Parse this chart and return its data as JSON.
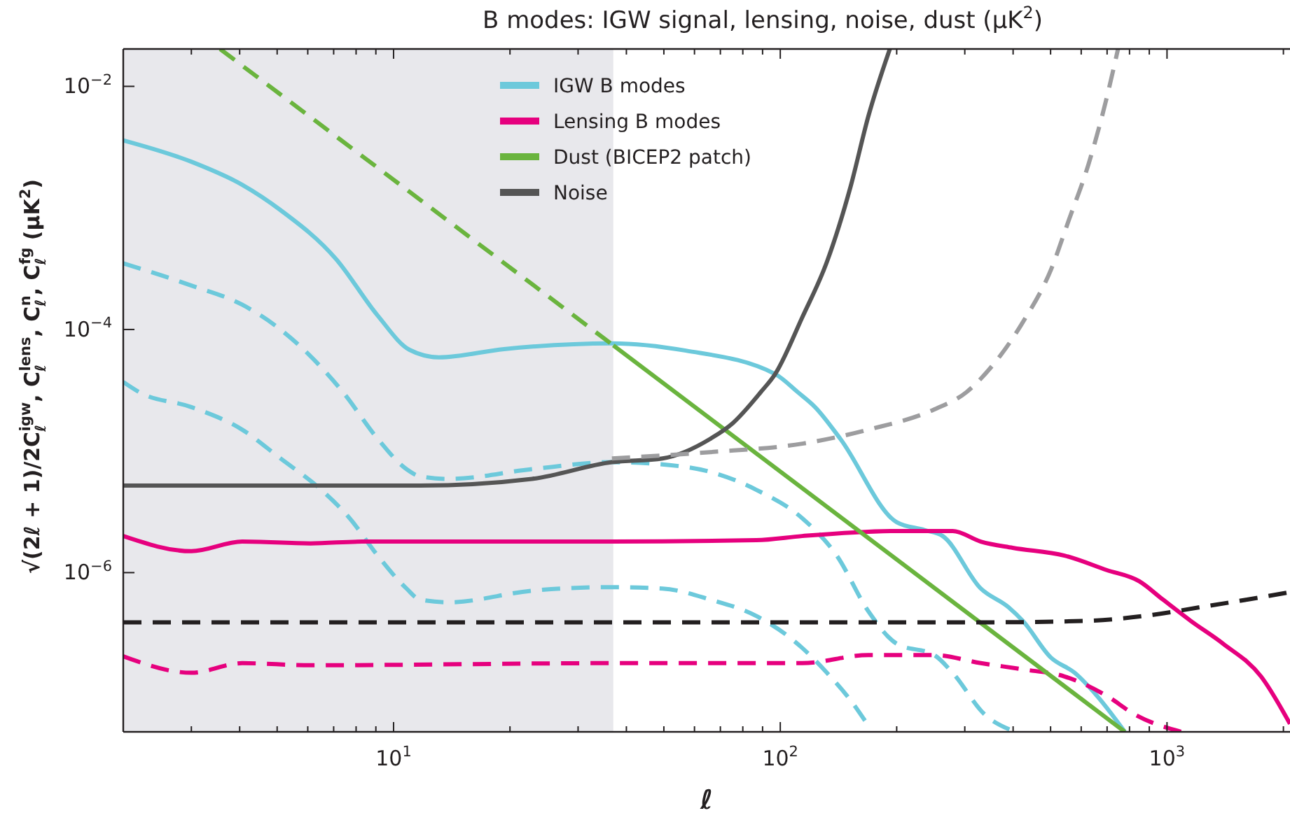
{
  "chart_data": {
    "type": "line",
    "title": "B modes: IGW signal, lensing, noise, dust (μK$^{2}$)",
    "xlabel": "ℓ",
    "ylabel": "√(2ℓ + 1)/2C$_{ℓ}$$^{igw}$, C$_{ℓ}$$^{lens}$, C$_{ℓ}$$^{n}$, C$_{ℓ}$$^{fg}$ (μK$^{2}$)",
    "log": "xy",
    "xlim": [
      2,
      2080
    ],
    "ylim": [
      4.9e-08,
      0.0203
    ],
    "xticks": [
      {
        "value": 3,
        "label": null
      },
      {
        "value": 4,
        "label": null
      },
      {
        "value": 5,
        "label": null
      },
      {
        "value": 6,
        "label": null
      },
      {
        "value": 7,
        "label": null
      },
      {
        "value": 8,
        "label": null
      },
      {
        "value": 9,
        "label": null
      },
      {
        "value": 10,
        "label": "10$^{1}$"
      },
      {
        "value": 20,
        "label": null
      },
      {
        "value": 30,
        "label": null
      },
      {
        "value": 40,
        "label": null
      },
      {
        "value": 50,
        "label": null
      },
      {
        "value": 60,
        "label": null
      },
      {
        "value": 70,
        "label": null
      },
      {
        "value": 80,
        "label": null
      },
      {
        "value": 90,
        "label": null
      },
      {
        "value": 100,
        "label": "10$^{2}$"
      },
      {
        "value": 200,
        "label": null
      },
      {
        "value": 300,
        "label": null
      },
      {
        "value": 400,
        "label": null
      },
      {
        "value": 500,
        "label": null
      },
      {
        "value": 600,
        "label": null
      },
      {
        "value": 700,
        "label": null
      },
      {
        "value": 800,
        "label": null
      },
      {
        "value": 900,
        "label": null
      },
      {
        "value": 1000,
        "label": "10$^{3}$"
      },
      {
        "value": 2000,
        "label": null
      }
    ],
    "yticks": [
      {
        "value": 0.01,
        "label": "10$^{−2}$"
      },
      {
        "value": 0.0001,
        "label": "10$^{−4}$"
      },
      {
        "value": 1e-06,
        "label": "10$^{−6}$"
      }
    ],
    "bands": [
      {
        "axis": "x",
        "from": 2,
        "to": 37,
        "color": "#e8e8ec"
      }
    ],
    "legend": "top",
    "series": [
      {
        "name": "IGW B modes",
        "color": "#6cc9db",
        "line_style": "solid",
        "x": [
          2,
          3,
          4.06,
          5.1,
          7.1,
          9.1,
          11,
          13.1,
          19.3,
          36.7,
          57,
          97,
          111,
          123,
          143,
          200,
          236,
          263,
          330,
          389,
          424,
          501,
          577,
          659,
          778
        ],
        "values": [
          0.0036,
          0.0024,
          0.00155,
          0.00096,
          0.00038,
          0.00013,
          6.8e-05,
          5.9e-05,
          6.9e-05,
          7.7e-05,
          6.7e-05,
          4.3e-05,
          3.05e-05,
          2.3e-05,
          1.26e-05,
          2.6e-06,
          2.24e-06,
          2e-06,
          7.4e-07,
          5.2e-07,
          4e-07,
          2e-07,
          1.5e-07,
          9.7e-08,
          4.9e-08
        ]
      },
      {
        "color": "#6cc9db",
        "line_style": "dashed",
        "x": [
          2,
          3,
          4.06,
          5.1,
          7.4,
          9.1,
          10.8,
          11.7,
          13.9,
          22.8,
          36.7,
          57,
          86.7,
          114,
          140,
          169,
          200,
          250,
          279,
          338,
          399
        ],
        "values": [
          0.00035,
          0.00023,
          0.00016,
          0.0001,
          3.05e-05,
          1.26e-05,
          7.1e-06,
          6.2e-06,
          5.9e-06,
          7.1e-06,
          8.1e-06,
          7.4e-06,
          4.8e-06,
          2.8e-06,
          1.38e-06,
          4.8e-07,
          2.6e-07,
          2.1e-07,
          1.5e-07,
          6.8e-08,
          5e-08
        ]
      },
      {
        "color": "#6cc9db",
        "line_style": "dashed",
        "x": [
          2,
          2.2,
          3,
          4.06,
          5.1,
          6.5,
          7.7,
          9.1,
          10.8,
          11.7,
          13.9,
          22.8,
          36.7,
          49.6,
          65.9,
          86.7,
          114,
          132,
          152,
          169
        ],
        "values": [
          3.7e-05,
          3.05e-05,
          2.3e-05,
          1.5e-05,
          8.7e-06,
          4.8e-06,
          2.8e-06,
          1.38e-06,
          7.4e-07,
          6e-07,
          5.7e-07,
          7.1e-07,
          7.6e-07,
          7.4e-07,
          6e-07,
          4.4e-07,
          2.4e-07,
          1.5e-07,
          8.9e-08,
          5.5e-08
        ]
      },
      {
        "name": "Lensing B modes",
        "color": "#e6007e",
        "line_style": "solid",
        "x": [
          2,
          3,
          4.06,
          6.1,
          8.3,
          36.7,
          86.7,
          114,
          200,
          279,
          330,
          399,
          543,
          698,
          847,
          976,
          1153,
          1397,
          1750,
          2080
        ],
        "values": [
          2e-06,
          1.5e-06,
          1.8e-06,
          1.74e-06,
          1.8e-06,
          1.8e-06,
          1.85e-06,
          2e-06,
          2.2e-06,
          2.2e-06,
          1.8e-06,
          1.6e-06,
          1.38e-06,
          1.05e-06,
          8.5e-07,
          6e-07,
          4e-07,
          2.6e-07,
          1.4e-07,
          5.7e-08
        ]
      },
      {
        "color": "#e6007e",
        "line_style": "dashed",
        "x": [
          2,
          3,
          4.06,
          6.1,
          36.7,
          114,
          169,
          250,
          330,
          424,
          543,
          698,
          826,
          1087
        ],
        "values": [
          2.05e-07,
          1.5e-07,
          1.8e-07,
          1.73e-07,
          1.8e-07,
          1.8e-07,
          2.1e-07,
          2.1e-07,
          1.8e-07,
          1.6e-07,
          1.4e-07,
          9.7e-08,
          6.8e-08,
          4.9e-08
        ]
      },
      {
        "color": "#6ab43e",
        "line_style": "dashed",
        "x": [
          3.56,
          37
        ],
        "values": [
          0.0203,
          7.4e-05
        ]
      },
      {
        "name": "Dust (BICEP2 patch)",
        "color": "#6ab43e",
        "line_style": "solid",
        "x": [
          37,
          778
        ],
        "values": [
          7.4e-05,
          4.9e-08
        ]
      },
      {
        "name": "Noise",
        "color": "#555555",
        "line_style": "solid",
        "x": [
          2,
          11.7,
          22.8,
          36.7,
          49.6,
          65.9,
          75.4,
          89,
          97,
          114,
          132,
          152,
          169,
          192
        ],
        "values": [
          5.2e-06,
          5.2e-06,
          5.9e-06,
          8.1e-06,
          8.7e-06,
          1.26e-05,
          1.7e-05,
          3.05e-05,
          4.3e-05,
          0.000126,
          0.00036,
          0.0015,
          0.0057,
          0.0203
        ]
      },
      {
        "color": "#9d9d9f",
        "line_style": "dashed",
        "x": [
          36.7,
          65.9,
          114,
          169,
          250,
          303,
          349,
          424,
          501,
          557,
          627,
          698,
          747
        ],
        "values": [
          8.7e-06,
          9.8e-06,
          1.15e-05,
          1.5e-05,
          2.2e-05,
          3.05e-05,
          4.8e-05,
          0.000115,
          0.00031,
          0.00079,
          0.0023,
          0.008,
          0.0203
        ]
      },
      {
        "color": "#231f20",
        "line_style": "dashed",
        "x": [
          2,
          330,
          607,
          920,
          1222,
          1611,
          2080
        ],
        "values": [
          3.9e-07,
          3.9e-07,
          4e-07,
          4.5e-07,
          5.2e-07,
          6e-07,
          6.9e-07
        ]
      }
    ]
  }
}
